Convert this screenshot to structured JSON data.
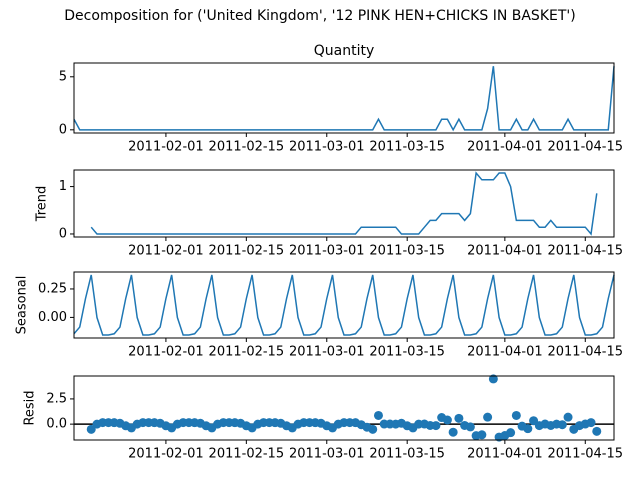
{
  "title": "Decomposition for ('United Kingdom', '12 PINK HEN+CHICKS IN BASKET')",
  "chart_data": [
    {
      "type": "line",
      "title": "Quantity",
      "color": "#1f77b4",
      "x": [
        "2011-01-16",
        "2011-01-17",
        "2011-01-18",
        "2011-01-19",
        "2011-01-20",
        "2011-01-21",
        "2011-01-22",
        "2011-01-23",
        "2011-01-24",
        "2011-01-25",
        "2011-01-26",
        "2011-01-27",
        "2011-01-28",
        "2011-01-29",
        "2011-01-30",
        "2011-01-31",
        "2011-02-01",
        "2011-02-02",
        "2011-02-03",
        "2011-02-04",
        "2011-02-05",
        "2011-02-06",
        "2011-02-07",
        "2011-02-08",
        "2011-02-09",
        "2011-02-10",
        "2011-02-11",
        "2011-02-12",
        "2011-02-13",
        "2011-02-14",
        "2011-02-15",
        "2011-02-16",
        "2011-02-17",
        "2011-02-18",
        "2011-02-19",
        "2011-02-20",
        "2011-02-21",
        "2011-02-22",
        "2011-02-23",
        "2011-02-24",
        "2011-02-25",
        "2011-02-26",
        "2011-02-27",
        "2011-02-28",
        "2011-03-01",
        "2011-03-02",
        "2011-03-03",
        "2011-03-04",
        "2011-03-05",
        "2011-03-06",
        "2011-03-07",
        "2011-03-08",
        "2011-03-09",
        "2011-03-10",
        "2011-03-11",
        "2011-03-12",
        "2011-03-13",
        "2011-03-14",
        "2011-03-15",
        "2011-03-16",
        "2011-03-17",
        "2011-03-18",
        "2011-03-19",
        "2011-03-20",
        "2011-03-21",
        "2011-03-22",
        "2011-03-23",
        "2011-03-24",
        "2011-03-25",
        "2011-03-26",
        "2011-03-27",
        "2011-03-28",
        "2011-03-29",
        "2011-03-30",
        "2011-03-31",
        "2011-04-01",
        "2011-04-02",
        "2011-04-03",
        "2011-04-04",
        "2011-04-05",
        "2011-04-06",
        "2011-04-07",
        "2011-04-08",
        "2011-04-09",
        "2011-04-10",
        "2011-04-11",
        "2011-04-12",
        "2011-04-13",
        "2011-04-14",
        "2011-04-15",
        "2011-04-16",
        "2011-04-17",
        "2011-04-18",
        "2011-04-19",
        "2011-04-20"
      ],
      "values": [
        1,
        0,
        0,
        0,
        0,
        0,
        0,
        0,
        0,
        0,
        0,
        0,
        0,
        0,
        0,
        0,
        0,
        0,
        0,
        0,
        0,
        0,
        0,
        0,
        0,
        0,
        0,
        0,
        0,
        0,
        0,
        0,
        0,
        0,
        0,
        0,
        0,
        0,
        0,
        0,
        0,
        0,
        0,
        0,
        0,
        0,
        0,
        0,
        0,
        0,
        0,
        0,
        0,
        1,
        0,
        0,
        0,
        0,
        0,
        0,
        0,
        0,
        0,
        0,
        1,
        1,
        0,
        1,
        0,
        0,
        0,
        0,
        2,
        6,
        0,
        0,
        0,
        1,
        0,
        0,
        1,
        0,
        0,
        0,
        0,
        0,
        1,
        0,
        0,
        0,
        0,
        0,
        0,
        0,
        6
      ],
      "xlim": [
        "2011-01-16",
        "2011-04-20"
      ],
      "xticks": [
        "2011-02-01",
        "2011-02-15",
        "2011-03-01",
        "2011-03-15",
        "2011-04-01",
        "2011-04-15"
      ],
      "ylim": [
        -0.3,
        6.3
      ],
      "yticks": [
        0,
        5
      ]
    },
    {
      "type": "line",
      "ylabel": "Trend",
      "color": "#1f77b4",
      "x": [
        "2011-01-16",
        "2011-01-17",
        "2011-01-18",
        "2011-01-19",
        "2011-01-20",
        "2011-01-21",
        "2011-01-22",
        "2011-01-23",
        "2011-01-24",
        "2011-01-25",
        "2011-01-26",
        "2011-01-27",
        "2011-01-28",
        "2011-01-29",
        "2011-01-30",
        "2011-01-31",
        "2011-02-01",
        "2011-02-02",
        "2011-02-03",
        "2011-02-04",
        "2011-02-05",
        "2011-02-06",
        "2011-02-07",
        "2011-02-08",
        "2011-02-09",
        "2011-02-10",
        "2011-02-11",
        "2011-02-12",
        "2011-02-13",
        "2011-02-14",
        "2011-02-15",
        "2011-02-16",
        "2011-02-17",
        "2011-02-18",
        "2011-02-19",
        "2011-02-20",
        "2011-02-21",
        "2011-02-22",
        "2011-02-23",
        "2011-02-24",
        "2011-02-25",
        "2011-02-26",
        "2011-02-27",
        "2011-02-28",
        "2011-03-01",
        "2011-03-02",
        "2011-03-03",
        "2011-03-04",
        "2011-03-05",
        "2011-03-06",
        "2011-03-07",
        "2011-03-08",
        "2011-03-09",
        "2011-03-10",
        "2011-03-11",
        "2011-03-12",
        "2011-03-13",
        "2011-03-14",
        "2011-03-15",
        "2011-03-16",
        "2011-03-17",
        "2011-03-18",
        "2011-03-19",
        "2011-03-20",
        "2011-03-21",
        "2011-03-22",
        "2011-03-23",
        "2011-03-24",
        "2011-03-25",
        "2011-03-26",
        "2011-03-27",
        "2011-03-28",
        "2011-03-29",
        "2011-03-30",
        "2011-03-31",
        "2011-04-01",
        "2011-04-02",
        "2011-04-03",
        "2011-04-04",
        "2011-04-05",
        "2011-04-06",
        "2011-04-07",
        "2011-04-08",
        "2011-04-09",
        "2011-04-10",
        "2011-04-11",
        "2011-04-12",
        "2011-04-13",
        "2011-04-14",
        "2011-04-15",
        "2011-04-16",
        "2011-04-17",
        "2011-04-18",
        "2011-04-19",
        "2011-04-20"
      ],
      "values": [
        null,
        null,
        null,
        0.143,
        0,
        0,
        0,
        0,
        0,
        0,
        0,
        0,
        0,
        0,
        0,
        0,
        0,
        0,
        0,
        0,
        0,
        0,
        0,
        0,
        0,
        0,
        0,
        0,
        0,
        0,
        0,
        0,
        0,
        0,
        0,
        0,
        0,
        0,
        0,
        0,
        0,
        0,
        0,
        0,
        0,
        0,
        0,
        0,
        0,
        0,
        0.143,
        0.143,
        0.143,
        0.143,
        0.143,
        0.143,
        0.143,
        0,
        0,
        0,
        0,
        0.143,
        0.286,
        0.286,
        0.429,
        0.429,
        0.429,
        0.429,
        0.286,
        0.429,
        1.286,
        1.143,
        1.143,
        1.143,
        1.286,
        1.286,
        1.0,
        0.286,
        0.286,
        0.286,
        0.286,
        0.143,
        0.143,
        0.286,
        0.143,
        0.143,
        0.143,
        0.143,
        0.143,
        0.143,
        0,
        0.857,
        null,
        null,
        null
      ],
      "xlim": [
        "2011-01-16",
        "2011-04-20"
      ],
      "xticks": [
        "2011-02-01",
        "2011-02-15",
        "2011-03-01",
        "2011-03-15",
        "2011-04-01",
        "2011-04-15"
      ],
      "ylim": [
        -0.064,
        1.35
      ],
      "yticks": [
        0,
        1
      ]
    },
    {
      "type": "line",
      "ylabel": "Seasonal",
      "color": "#1f77b4",
      "x": [
        "2011-01-16",
        "2011-01-17",
        "2011-01-18",
        "2011-01-19",
        "2011-01-20",
        "2011-01-21",
        "2011-01-22",
        "2011-01-23",
        "2011-01-24",
        "2011-01-25",
        "2011-01-26",
        "2011-01-27",
        "2011-01-28",
        "2011-01-29",
        "2011-01-30",
        "2011-01-31",
        "2011-02-01",
        "2011-02-02",
        "2011-02-03",
        "2011-02-04",
        "2011-02-05",
        "2011-02-06",
        "2011-02-07",
        "2011-02-08",
        "2011-02-09",
        "2011-02-10",
        "2011-02-11",
        "2011-02-12",
        "2011-02-13",
        "2011-02-14",
        "2011-02-15",
        "2011-02-16",
        "2011-02-17",
        "2011-02-18",
        "2011-02-19",
        "2011-02-20",
        "2011-02-21",
        "2011-02-22",
        "2011-02-23",
        "2011-02-24",
        "2011-02-25",
        "2011-02-26",
        "2011-02-27",
        "2011-02-28",
        "2011-03-01",
        "2011-03-02",
        "2011-03-03",
        "2011-03-04",
        "2011-03-05",
        "2011-03-06",
        "2011-03-07",
        "2011-03-08",
        "2011-03-09",
        "2011-03-10",
        "2011-03-11",
        "2011-03-12",
        "2011-03-13",
        "2011-03-14",
        "2011-03-15",
        "2011-03-16",
        "2011-03-17",
        "2011-03-18",
        "2011-03-19",
        "2011-03-20",
        "2011-03-21",
        "2011-03-22",
        "2011-03-23",
        "2011-03-24",
        "2011-03-25",
        "2011-03-26",
        "2011-03-27",
        "2011-03-28",
        "2011-03-29",
        "2011-03-30",
        "2011-03-31",
        "2011-04-01",
        "2011-04-02",
        "2011-04-03",
        "2011-04-04",
        "2011-04-05",
        "2011-04-06",
        "2011-04-07",
        "2011-04-08",
        "2011-04-09",
        "2011-04-10",
        "2011-04-11",
        "2011-04-12",
        "2011-04-13",
        "2011-04-14",
        "2011-04-15",
        "2011-04-16",
        "2011-04-17",
        "2011-04-18",
        "2011-04-19",
        "2011-04-20"
      ],
      "values": [
        -0.144,
        -0.085,
        0.165,
        0.373,
        -0.001,
        -0.155,
        -0.155,
        -0.144,
        -0.085,
        0.165,
        0.373,
        -0.001,
        -0.155,
        -0.155,
        -0.144,
        -0.085,
        0.165,
        0.373,
        -0.001,
        -0.155,
        -0.155,
        -0.144,
        -0.085,
        0.165,
        0.373,
        -0.001,
        -0.155,
        -0.155,
        -0.144,
        -0.085,
        0.165,
        0.373,
        -0.001,
        -0.155,
        -0.155,
        -0.144,
        -0.085,
        0.165,
        0.373,
        -0.001,
        -0.155,
        -0.155,
        -0.144,
        -0.085,
        0.165,
        0.373,
        -0.001,
        -0.155,
        -0.155,
        -0.144,
        -0.085,
        0.165,
        0.373,
        -0.001,
        -0.155,
        -0.155,
        -0.144,
        -0.085,
        0.165,
        0.373,
        -0.001,
        -0.155,
        -0.155,
        -0.144,
        -0.085,
        0.165,
        0.373,
        -0.001,
        -0.155,
        -0.155,
        -0.144,
        -0.085,
        0.165,
        0.373,
        -0.001,
        -0.155,
        -0.155,
        -0.144,
        -0.085,
        0.165,
        0.373,
        -0.001,
        -0.155,
        -0.155,
        -0.144,
        -0.085,
        0.165,
        0.373,
        -0.001,
        -0.155,
        -0.155,
        -0.144,
        -0.085,
        0.165,
        0.373
      ],
      "xlim": [
        "2011-01-16",
        "2011-04-20"
      ],
      "xticks": [
        "2011-02-01",
        "2011-02-15",
        "2011-03-01",
        "2011-03-15",
        "2011-04-01",
        "2011-04-15"
      ],
      "ylim": [
        -0.181,
        0.399
      ],
      "yticks": [
        {
          "value": 0.25,
          "label": "0.25"
        },
        {
          "value": 0,
          "label": "0.00"
        }
      ]
    },
    {
      "type": "scatter",
      "ylabel": "Resid",
      "color": "#1f77b4",
      "axhline": 0,
      "x": [
        "2011-01-16",
        "2011-01-17",
        "2011-01-18",
        "2011-01-19",
        "2011-01-20",
        "2011-01-21",
        "2011-01-22",
        "2011-01-23",
        "2011-01-24",
        "2011-01-25",
        "2011-01-26",
        "2011-01-27",
        "2011-01-28",
        "2011-01-29",
        "2011-01-30",
        "2011-01-31",
        "2011-02-01",
        "2011-02-02",
        "2011-02-03",
        "2011-02-04",
        "2011-02-05",
        "2011-02-06",
        "2011-02-07",
        "2011-02-08",
        "2011-02-09",
        "2011-02-10",
        "2011-02-11",
        "2011-02-12",
        "2011-02-13",
        "2011-02-14",
        "2011-02-15",
        "2011-02-16",
        "2011-02-17",
        "2011-02-18",
        "2011-02-19",
        "2011-02-20",
        "2011-02-21",
        "2011-02-22",
        "2011-02-23",
        "2011-02-24",
        "2011-02-25",
        "2011-02-26",
        "2011-02-27",
        "2011-02-28",
        "2011-03-01",
        "2011-03-02",
        "2011-03-03",
        "2011-03-04",
        "2011-03-05",
        "2011-03-06",
        "2011-03-07",
        "2011-03-08",
        "2011-03-09",
        "2011-03-10",
        "2011-03-11",
        "2011-03-12",
        "2011-03-13",
        "2011-03-14",
        "2011-03-15",
        "2011-03-16",
        "2011-03-17",
        "2011-03-18",
        "2011-03-19",
        "2011-03-20",
        "2011-03-21",
        "2011-03-22",
        "2011-03-23",
        "2011-03-24",
        "2011-03-25",
        "2011-03-26",
        "2011-03-27",
        "2011-03-28",
        "2011-03-29",
        "2011-03-30",
        "2011-03-31",
        "2011-04-01",
        "2011-04-02",
        "2011-04-03",
        "2011-04-04",
        "2011-04-05",
        "2011-04-06",
        "2011-04-07",
        "2011-04-08",
        "2011-04-09",
        "2011-04-10",
        "2011-04-11",
        "2011-04-12",
        "2011-04-13",
        "2011-04-14",
        "2011-04-15",
        "2011-04-16",
        "2011-04-17",
        "2011-04-18",
        "2011-04-19",
        "2011-04-20"
      ],
      "values": [
        null,
        null,
        null,
        -0.516,
        0.001,
        0.155,
        0.155,
        0.144,
        0.085,
        -0.165,
        -0.373,
        0.001,
        0.155,
        0.155,
        0.144,
        0.085,
        -0.165,
        -0.373,
        0.001,
        0.155,
        0.155,
        0.144,
        0.085,
        -0.165,
        -0.373,
        0.001,
        0.155,
        0.155,
        0.144,
        0.085,
        -0.165,
        -0.373,
        0.001,
        0.155,
        0.155,
        0.144,
        0.085,
        -0.165,
        -0.373,
        0.001,
        0.155,
        0.155,
        0.144,
        0.085,
        -0.165,
        -0.373,
        0.001,
        0.155,
        0.155,
        0.144,
        -0.058,
        -0.308,
        -0.516,
        0.858,
        0.012,
        0.012,
        0.001,
        0.085,
        -0.165,
        -0.373,
        0.001,
        0.012,
        -0.131,
        -0.142,
        0.656,
        0.406,
        -0.802,
        0.572,
        -0.131,
        -0.274,
        -1.142,
        -1.058,
        0.692,
        4.484,
        -1.285,
        -1.131,
        -0.845,
        0.858,
        -0.201,
        -0.451,
        0.341,
        -0.142,
        0.012,
        -0.131,
        0.001,
        -0.058,
        0.692,
        -0.516,
        -0.142,
        0.012,
        0.155,
        -0.713,
        null,
        null,
        null
      ],
      "xlim": [
        "2011-01-16",
        "2011-04-20"
      ],
      "xticks": [
        "2011-02-01",
        "2011-02-15",
        "2011-03-01",
        "2011-03-15",
        "2011-04-01",
        "2011-04-15"
      ],
      "ylim": [
        -1.573,
        4.772
      ],
      "yticks": [
        {
          "value": 2.5,
          "label": "2.5"
        },
        {
          "value": 0,
          "label": "0.0"
        }
      ]
    }
  ]
}
